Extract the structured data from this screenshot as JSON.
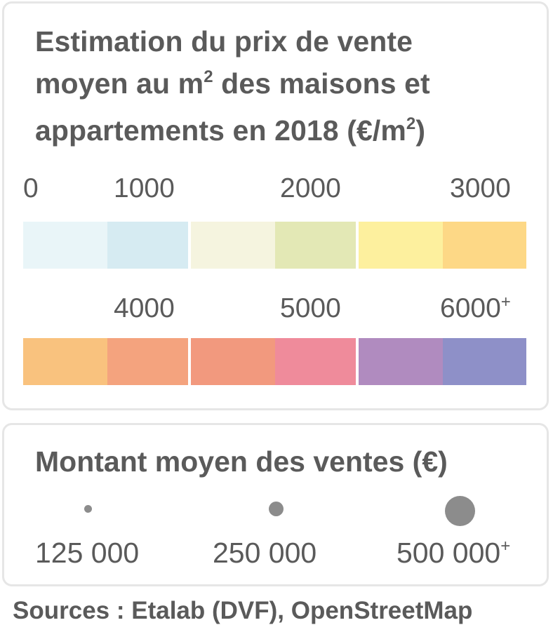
{
  "price_legend": {
    "title_line1": "Estimation du prix de vente",
    "title_line2_a": "moyen au m",
    "title_line2_sup": "2",
    "title_line2_b": " des maisons et",
    "title_line3_a": "appartements en 2018 (€/m",
    "title_line3_sup": "2",
    "title_line3_b": ")",
    "ticks_row1": [
      "0",
      "1000",
      "2000",
      "3000"
    ],
    "ticks_row2": [
      "4000",
      "5000",
      "6000"
    ],
    "ticks_row2_last_sup": "+",
    "colors_row1": [
      "#e9f5f8",
      "#d6ebf2",
      "#f5f4df",
      "#e3e8b5",
      "#fdf09e",
      "#fdd886"
    ],
    "colors_row2": [
      "#f9c27e",
      "#f4a37e",
      "#f2997e",
      "#ef8b9b",
      "#b08bbf",
      "#8e90c8"
    ],
    "separator_color": "#ffffff"
  },
  "sales_legend": {
    "title": "Montant moyen des ventes (€)",
    "bubbles": [
      {
        "label": "125 000",
        "sup": ""
      },
      {
        "label": "250 000",
        "sup": ""
      },
      {
        "label": "500 000",
        "sup": "+"
      }
    ],
    "bubble_color": "#8c8c8c"
  },
  "sources": "Sources : Etalab (DVF), OpenStreetMap"
}
